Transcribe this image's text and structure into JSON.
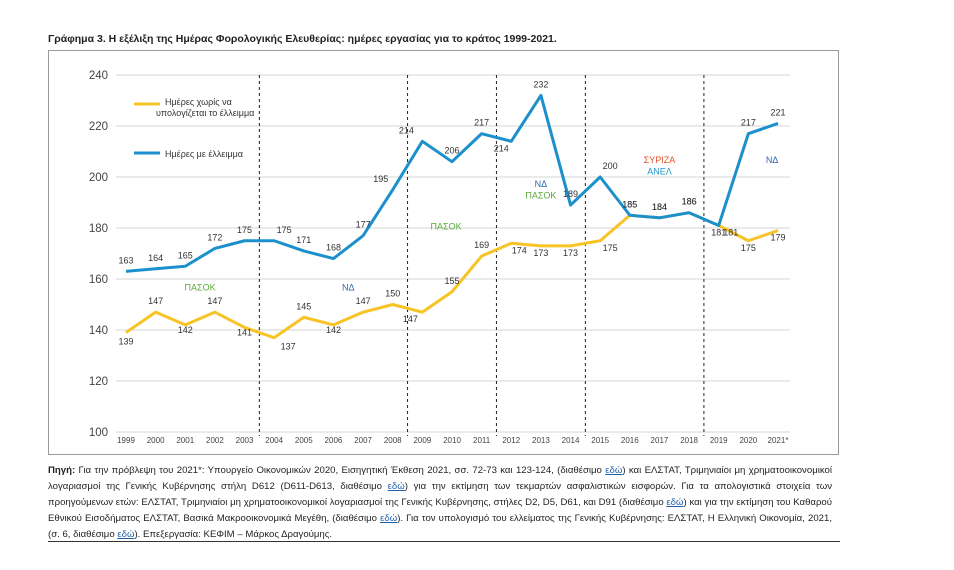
{
  "title": "Γράφημα 3. Η εξέλιξη της Ημέρας Φορολογικής Ελευθερίας: ημέρες εργασίας για το κράτος 1999-2021.",
  "colors": {
    "yellow": "#f7c325",
    "blue": "#1b90cd",
    "green": "#5aaa3c",
    "nd": "#2e63ad",
    "syriza": "#e0522a",
    "anel": "#2596c8",
    "grid": "#d4d4d4"
  },
  "chart_data": {
    "type": "line",
    "title": "",
    "xlabel": "",
    "ylabel": "",
    "ylim": [
      100,
      240
    ],
    "yticks": [
      100,
      120,
      140,
      160,
      180,
      200,
      220,
      240
    ],
    "grid": true,
    "legend_position": "top-left",
    "categories": [
      "1999",
      "2000",
      "2001",
      "2002",
      "2003",
      "2004",
      "2005",
      "2006",
      "2007",
      "2008",
      "2009",
      "2010",
      "2011",
      "2012",
      "2013",
      "2014",
      "2015",
      "2016",
      "2017",
      "2018",
      "2019",
      "2020",
      "2021*"
    ],
    "series": [
      {
        "name": "Ημέρες χωρίς να υπολογίζεται το έλλειμμα",
        "color": "#f7c325",
        "values": [
          139,
          147,
          142,
          147,
          141,
          137,
          145,
          142,
          147,
          150,
          147,
          155,
          169,
          174,
          173,
          173,
          175,
          185,
          184,
          186,
          181,
          175,
          179
        ]
      },
      {
        "name": "Ημέρες με έλλειμμα",
        "color": "#1b90cd",
        "values": [
          163,
          164,
          165,
          172,
          175,
          175,
          171,
          168,
          177,
          195,
          214,
          206,
          217,
          214,
          232,
          189,
          200,
          185,
          184,
          186,
          181,
          217,
          221
        ]
      }
    ],
    "period_dividers_after": [
      "2003",
      "2008",
      "2011",
      "2014",
      "2018"
    ],
    "annotations": [
      {
        "text": "ΠΑΣΟΚ",
        "color": "#5aaa3c",
        "x": 2.5,
        "y": 155.5
      },
      {
        "text": "ΝΔ",
        "color": "#2e63ad",
        "x": 7.5,
        "y": 155.5
      },
      {
        "text": "ΠΑΣΟΚ",
        "color": "#5aaa3c",
        "x": 10.8,
        "y": 179.5
      },
      {
        "text": "ΝΔ",
        "color": "#2e63ad",
        "x": 14.0,
        "y": 196
      },
      {
        "text": "ΠΑΣΟΚ",
        "color": "#5aaa3c",
        "x": 14.0,
        "y": 191.5
      },
      {
        "text": "ΣΥΡΙΖΑ",
        "color": "#e0522a",
        "x": 18.0,
        "y": 205.5
      },
      {
        "text": "ΑΝΕΛ",
        "color": "#2596c8",
        "x": 18.0,
        "y": 201
      },
      {
        "text": "ΝΔ",
        "color": "#2e63ad",
        "x": 21.8,
        "y": 205.5
      }
    ]
  },
  "source": {
    "label": "Πηγή:",
    "parts": [
      " Για την πρόβλεψη του 2021*: Υπουργείο Οικονομικών 2020, Εισηγητική Έκθεση 2021, σσ. 72-73 και 123-124, (διαθέσιμο ",
      "εδώ",
      ") και ΕΛΣΤΑΤ, Τριμηνιαίοι μη χρηματοοικονομικοί λογαριασμοί της Γενικής Κυβέρνησης στήλη D612 (D611-D613, διαθέσιμο ",
      "εδώ",
      ") για την εκτίμηση των τεκμαρτών ασφαλιστικών εισφορών. Για τα απολογιστικά στοιχεία των προηγούμενων ετών: ΕΛΣΤΑΤ, Τριμηνιαίοι μη χρηματοοικονομικοί λογαριασμοί της Γενικής Κυβέρνησης, στήλες D2, D5, D61, και D91 (διαθέσιμο ",
      "εδώ",
      ") και για την εκτίμηση του Καθαρού Εθνικού Εισοδήματος ΕΛΣΤΑΤ, Βασικά Μακροοικονομικά Μεγέθη, (διαθέσιμο ",
      "εδώ",
      "). Για τον υπολογισμό του ελλείματος της Γενικής Κυβέρνησης: ΕΛΣΤΑΤ, Η Ελληνική Οικονομία, 2021, (σ. 6, διαθέσιμο ",
      "εδώ",
      "). Επεξεργασία: ΚΕΦΙΜ – Μάρκος Δραγούμης."
    ]
  }
}
